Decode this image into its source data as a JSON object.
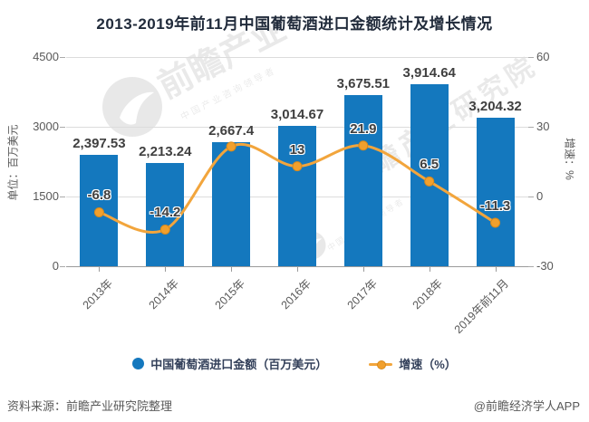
{
  "title": "2013-2019年前11月中国葡萄酒进口金额统计及增长情况",
  "chart_data": {
    "type": "bar+line",
    "categories": [
      "2013年",
      "2014年",
      "2015年",
      "2016年",
      "2017年",
      "2018年",
      "2019年前11月"
    ],
    "series": [
      {
        "name": "中国葡萄酒进口金额（百万美元）",
        "type": "bar",
        "axis": "left",
        "color": "#1478be",
        "values": [
          2397.53,
          2213.24,
          2667.4,
          3014.67,
          3675.51,
          3914.64,
          3204.32
        ],
        "labels": [
          "2,397.53",
          "2,213.24",
          "2,667.4",
          "3,014.67",
          "3,675.51",
          "3,914.64",
          "3,204.32"
        ]
      },
      {
        "name": "增速（%）",
        "type": "line",
        "axis": "right",
        "color": "#f2a53c",
        "marker_fill": "#f1a02d",
        "marker_stroke": "#d8891b",
        "values": [
          -6.8,
          -14.2,
          21.5,
          13,
          21.9,
          6.5,
          -11.3
        ],
        "labels": [
          "-6.8",
          "-14.2",
          "",
          "13",
          "21.9",
          "6.5",
          "-11.3"
        ]
      }
    ],
    "left_axis": {
      "name": "单位：百万美元",
      "min": 0,
      "max": 4500,
      "ticks": [
        4500,
        3000,
        1500,
        0
      ]
    },
    "right_axis": {
      "name": "增速：%",
      "min": -30,
      "max": 60,
      "ticks": [
        60,
        30,
        0,
        -30
      ]
    },
    "grid": true,
    "legend_position": "bottom"
  },
  "legend": [
    {
      "label": "中国葡萄酒进口金额（百万美元）",
      "marker": "circle-icon"
    },
    {
      "label": "增速（%）",
      "marker": "line-dot-icon"
    }
  ],
  "watermark": {
    "brand_large": "前瞻产业",
    "brand_diagonal": "前瞻产业研究院",
    "slogan_small": "中国产业咨询领导者",
    "logo": "qianzhan-swoosh-logo"
  },
  "footer": {
    "source": "资料来源：前瞻产业研究院整理",
    "credit": "@前瞻经济学人APP"
  }
}
